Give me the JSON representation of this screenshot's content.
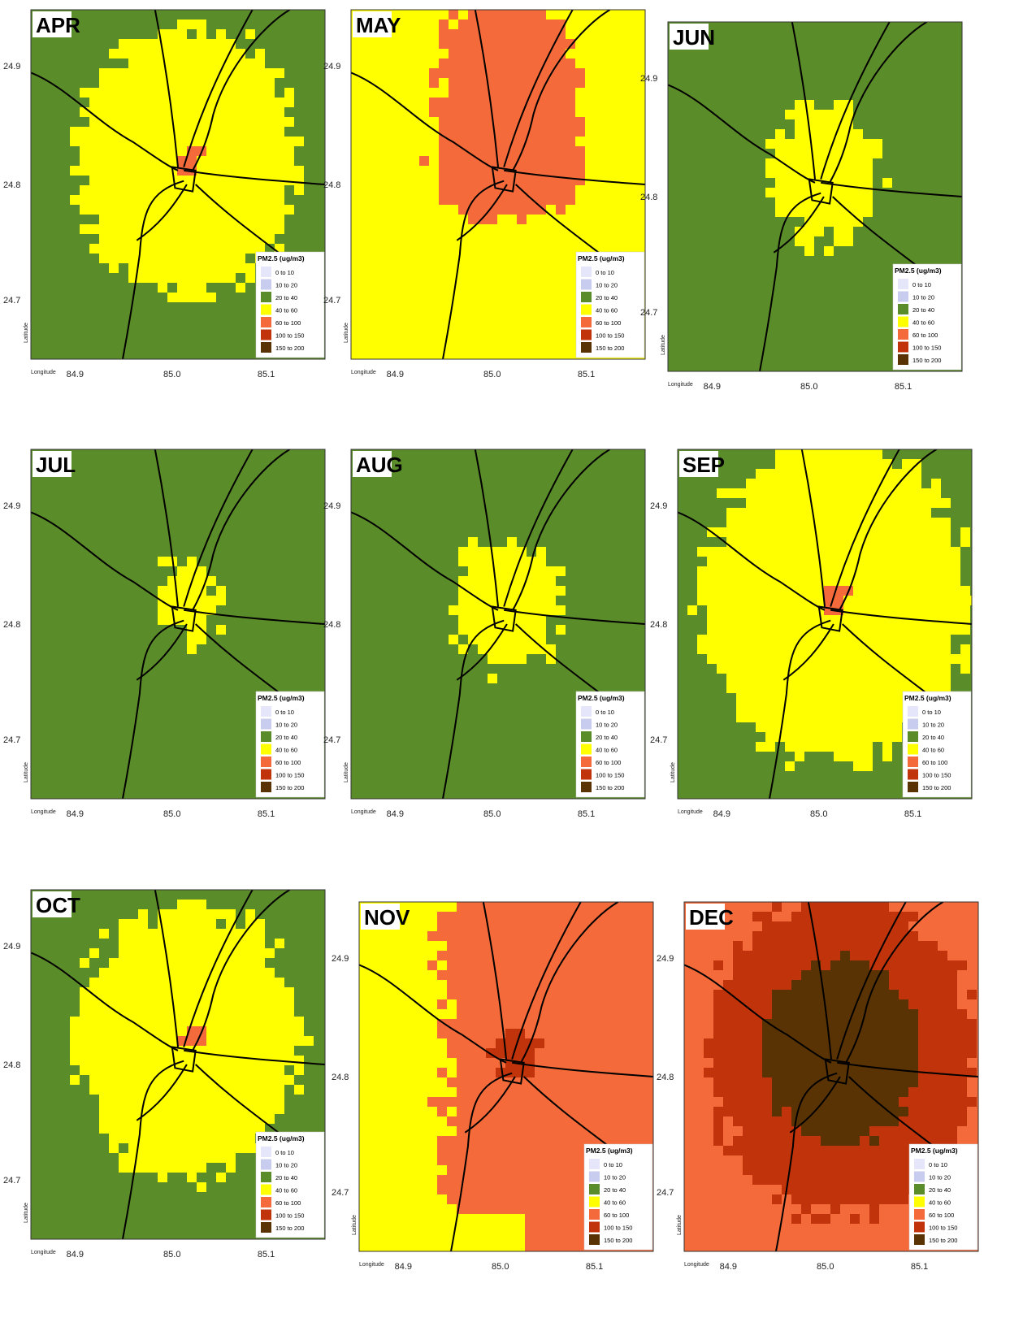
{
  "figure": {
    "x_axis_title": "Longitude",
    "y_axis_title": "Latitude",
    "x_ticks": [
      "84.9",
      "85.0",
      "85.1"
    ],
    "y_ticks": [
      "24.9",
      "24.8",
      "24.7"
    ]
  },
  "legend": {
    "title": "PM2.5 (ug/m3)",
    "classes": [
      {
        "label": "0 to 10",
        "color": "#e6e6fa"
      },
      {
        "label": "10 to 20",
        "color": "#c8ccee"
      },
      {
        "label": "20 to 40",
        "color": "#5b8c2a"
      },
      {
        "label": "40 to 60",
        "color": "#ffff00"
      },
      {
        "label": "60 to 100",
        "color": "#f46a3a"
      },
      {
        "label": "100 to 150",
        "color": "#c1330a"
      },
      {
        "label": "150 to 200",
        "color": "#5a3305"
      }
    ]
  },
  "panels": [
    {
      "month": "APR",
      "background_class": "20 to 40",
      "plume_class": "40 to 60",
      "plume_extent": "broad",
      "core_class": "60 to 100"
    },
    {
      "month": "MAY",
      "background_class": "40 to 60",
      "plume_class": "60 to 100",
      "plume_extent": "wedge"
    },
    {
      "month": "JUN",
      "background_class": "20 to 40",
      "plume_class": "40 to 60",
      "plume_extent": "small"
    },
    {
      "month": "JUL",
      "background_class": "20 to 40",
      "plume_class": "40 to 60",
      "plume_extent": "tiny"
    },
    {
      "month": "AUG",
      "background_class": "20 to 40",
      "plume_class": "40 to 60",
      "plume_extent": "small"
    },
    {
      "month": "SEP",
      "background_class": "20 to 40",
      "plume_class": "40 to 60",
      "plume_extent": "large",
      "core_class": "60 to 100"
    },
    {
      "month": "OCT",
      "background_class": "20 to 40",
      "plume_class": "40 to 60",
      "plume_extent": "broad",
      "core_class": "60 to 100"
    },
    {
      "month": "NOV",
      "background_class": "40 to 60",
      "plume_class": "60 to 100",
      "plume_extent": "east-half",
      "core_class": "100 to 150"
    },
    {
      "month": "DEC",
      "background_class": "60 to 100",
      "plume_class": "100 to 150",
      "plume_extent": "large",
      "core_class": "150 to 200"
    }
  ]
}
